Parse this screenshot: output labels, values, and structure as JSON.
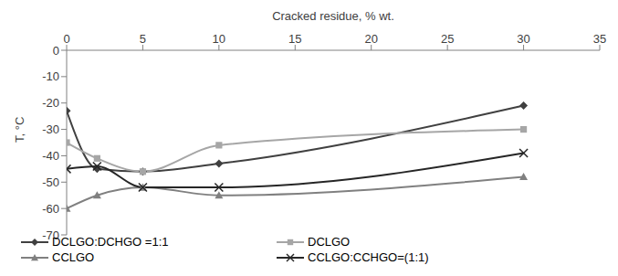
{
  "chart_data": {
    "type": "line",
    "x_label": "Cracked residue, % wt.",
    "y_label": "T, °C",
    "x": [
      0,
      2,
      5,
      10,
      30
    ],
    "xlim": [
      0,
      35
    ],
    "xticks": [
      0,
      5,
      10,
      15,
      20,
      25,
      30,
      35
    ],
    "ylim": [
      -70,
      0
    ],
    "yticks": [
      -70,
      -60,
      -50,
      -40,
      -30,
      -20,
      -10,
      0
    ],
    "grid": false,
    "legend": "bottom",
    "series": [
      {
        "name": "DCLGO:DCHGO =1:1",
        "color": "#404040",
        "marker": "diamond",
        "values": [
          -23,
          -45,
          -46,
          -43,
          -21
        ]
      },
      {
        "name": "DCLGO",
        "color": "#a6a6a6",
        "marker": "square",
        "values": [
          -35,
          -41,
          -46,
          -36,
          -30
        ]
      },
      {
        "name": "CCLGO",
        "color": "#808080",
        "marker": "triangle",
        "values": [
          -60,
          -55,
          -52,
          -55,
          -48
        ]
      },
      {
        "name": "CCLGO:CCHGO=(1:1)",
        "color": "#262626",
        "marker": "x",
        "values": [
          -45,
          -44,
          -52,
          -52,
          -39
        ]
      }
    ]
  }
}
